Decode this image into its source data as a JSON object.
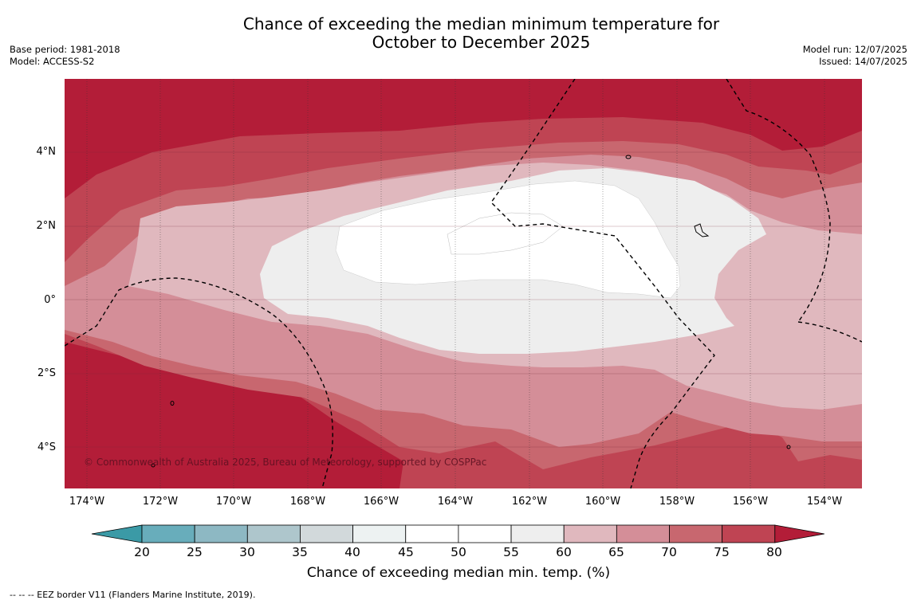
{
  "title_line1": "Chance of exceeding the median minimum temperature for",
  "title_line2": "October to December 2025",
  "meta_left": [
    "Base period: 1981-2018",
    "Model: ACCESS-S2"
  ],
  "meta_right": [
    "Model run: 12/07/2025",
    "Issued: 14/07/2025"
  ],
  "map": {
    "lon_labels": [
      "174°W",
      "172°W",
      "170°W",
      "168°W",
      "166°W",
      "164°W",
      "162°W",
      "160°W",
      "158°W",
      "156°W",
      "154°W"
    ],
    "lat_labels": [
      "4°N",
      "2°N",
      "0°",
      "2°S",
      "4°S"
    ],
    "copyright": "© Commonwealth of Australia 2025, Bureau of Meteorology, supported by COSPPac"
  },
  "colorbar": {
    "ticks": [
      "20",
      "25",
      "30",
      "35",
      "40",
      "45",
      "50",
      "55",
      "60",
      "65",
      "70",
      "75",
      "80"
    ],
    "colors": [
      "#3b9aa6",
      "#68adbb",
      "#8db8c3",
      "#aec6cc",
      "#d2d9db",
      "#edf2f2",
      "#ffffff",
      "#ffffff",
      "#eeeeee",
      "#e0b8be",
      "#d48e98",
      "#c8676f",
      "#bf4453",
      "#b31d38"
    ],
    "label": "Chance of exceeding median min. temp. (%)"
  },
  "footer": "--  --  -- EEZ border V11 (Flanders Marine Institute, 2019)."
}
